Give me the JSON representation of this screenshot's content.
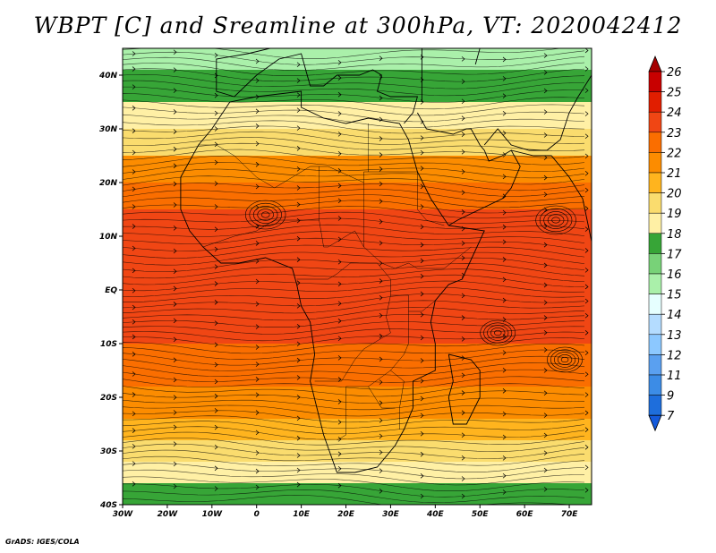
{
  "title": "WBPT [C] and Sreamline at 300hPa, VT: 2020042412",
  "footer": "GrADS: IGES/COLA",
  "map": {
    "lon_range": [
      -30,
      75
    ],
    "lat_range": [
      -40,
      45
    ],
    "x_ticks": [
      {
        "value": -30,
        "label": "30W"
      },
      {
        "value": -20,
        "label": "20W"
      },
      {
        "value": -10,
        "label": "10W"
      },
      {
        "value": 0,
        "label": "0"
      },
      {
        "value": 10,
        "label": "10E"
      },
      {
        "value": 20,
        "label": "20E"
      },
      {
        "value": 30,
        "label": "30E"
      },
      {
        "value": 40,
        "label": "40E"
      },
      {
        "value": 50,
        "label": "50E"
      },
      {
        "value": 60,
        "label": "60E"
      },
      {
        "value": 70,
        "label": "70E"
      }
    ],
    "y_ticks": [
      {
        "value": 40,
        "label": "40N"
      },
      {
        "value": 30,
        "label": "30N"
      },
      {
        "value": 20,
        "label": "20N"
      },
      {
        "value": 10,
        "label": "10N"
      },
      {
        "value": 0,
        "label": "EQ"
      },
      {
        "value": -10,
        "label": "10S"
      },
      {
        "value": -20,
        "label": "20S"
      },
      {
        "value": -30,
        "label": "30S"
      },
      {
        "value": -40,
        "label": "40S"
      }
    ],
    "wbpt_bands": [
      {
        "lat": 45,
        "value": 14
      },
      {
        "lat": 41,
        "value": 17
      },
      {
        "lat": 35,
        "value": 18
      },
      {
        "lat": 30,
        "value": 19
      },
      {
        "lat": 25,
        "value": 20
      },
      {
        "lat": 20,
        "value": 22
      },
      {
        "lat": 15,
        "value": 23
      },
      {
        "lat": 10,
        "value": 23.5
      },
      {
        "lat": 0,
        "value": 23.5
      },
      {
        "lat": -10,
        "value": 23
      },
      {
        "lat": -18,
        "value": 22
      },
      {
        "lat": -24,
        "value": 21
      },
      {
        "lat": -28,
        "value": 20
      },
      {
        "lat": -32,
        "value": 19
      },
      {
        "lat": -36,
        "value": 18
      },
      {
        "lat": -40,
        "value": 17
      }
    ]
  },
  "colorbar": {
    "levels": [
      "26",
      "25",
      "24",
      "23",
      "22",
      "21",
      "20",
      "19",
      "18",
      "17",
      "16",
      "15",
      "14",
      "13",
      "12",
      "11",
      "9",
      "7"
    ],
    "colors": [
      "#a50000",
      "#c80000",
      "#e11e00",
      "#f04614",
      "#fa6e00",
      "#fc8c00",
      "#ffb41e",
      "#fadc6e",
      "#fff0a5",
      "#37a537",
      "#78d278",
      "#aaf0aa",
      "#e6ffff",
      "#b4dcff",
      "#8cc8ff",
      "#5aa0f0",
      "#3c8ce6",
      "#1e6edc",
      "#145adc"
    ]
  }
}
